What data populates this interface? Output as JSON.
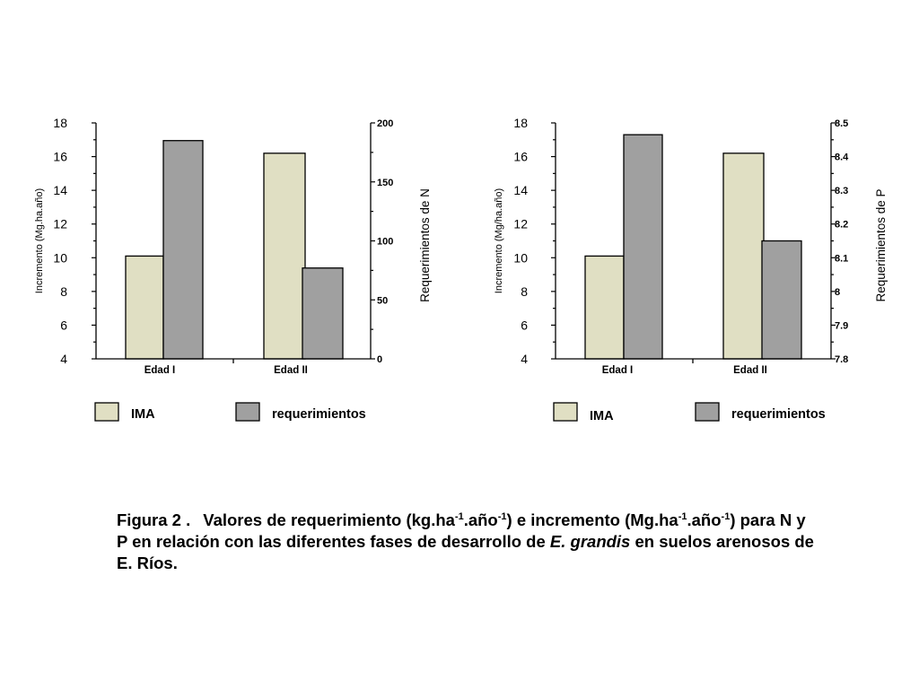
{
  "chart_data": [
    {
      "type": "bar",
      "categories": [
        "Edad I",
        "Edad II"
      ],
      "series": [
        {
          "name": "IMA",
          "axis": "left",
          "color": "#e0dfc3",
          "values": [
            10.1,
            16.2
          ]
        },
        {
          "name": "requerimientos",
          "axis": "right",
          "color": "#a0a0a0",
          "values": [
            185,
            77
          ]
        }
      ],
      "ylabel": "Incremento (Mg.ha.año)",
      "ylim": [
        4,
        18
      ],
      "yticks": [
        "4",
        "6",
        "8",
        "10",
        "12",
        "14",
        "16",
        "18"
      ],
      "y2label": "Requerimientos de N",
      "y2lim": [
        0,
        200
      ],
      "y2ticks": [
        "0",
        "50",
        "100",
        "150",
        "200"
      ],
      "legend": [
        "IMA",
        "requerimientos"
      ],
      "legend_position": "bottom"
    },
    {
      "type": "bar",
      "categories": [
        "Edad I",
        "Edad II"
      ],
      "series": [
        {
          "name": "IMA",
          "axis": "left",
          "color": "#e0dfc3",
          "values": [
            10.1,
            16.2
          ]
        },
        {
          "name": "requerimientos",
          "axis": "right",
          "color": "#a0a0a0",
          "values": [
            8.465,
            8.15
          ]
        }
      ],
      "ylabel": "Incremento (Mg/ha.año)",
      "ylim": [
        4,
        18
      ],
      "yticks": [
        "4",
        "6",
        "8",
        "10",
        "12",
        "14",
        "16",
        "18"
      ],
      "y2label": "Requerimientos de P",
      "y2lim": [
        7.8,
        8.5
      ],
      "y2ticks": [
        "7.8",
        "7.9",
        "8",
        "8.1",
        "8.2",
        "8.3",
        "8.4",
        "8.5"
      ],
      "legend": [
        "IMA",
        "requerimientos"
      ],
      "legend_position": "bottom"
    }
  ],
  "caption": {
    "label": "Figura 2 .",
    "text_1": "Valores de requerimiento  (kg.ha",
    "sup_1": "-1",
    "text_2": ".año",
    "sup_2": "-1",
    "text_3": ") e incremento (Mg.ha",
    "sup_3": "-1",
    "text_4": ".año",
    "sup_4": "-1",
    "text_5": ") para N y P en relación con las diferentes fases de desarrollo de ",
    "species": "E. grandis",
    "text_6": " en suelos arenosos de E. Ríos."
  }
}
